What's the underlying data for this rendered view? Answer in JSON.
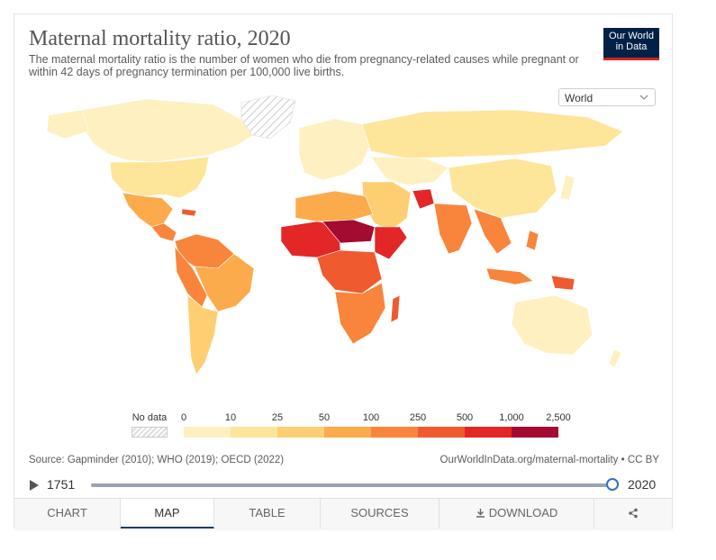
{
  "header": {
    "title": "Maternal mortality ratio, 2020",
    "subtitle": "The maternal mortality ratio is the number of women who die from pregnancy-related causes while pregnant or within 42 days of pregnancy termination per 100,000 live births.",
    "logo_line1": "Our World",
    "logo_line2": "in Data"
  },
  "region_select": {
    "value": "World"
  },
  "legend": {
    "nodata_label": "No data",
    "bins": [
      "0",
      "10",
      "25",
      "50",
      "100",
      "250",
      "500",
      "1,000",
      "2,500"
    ],
    "colors": [
      "#fef0c0",
      "#fde59a",
      "#fdcf72",
      "#fbab4b",
      "#f8853b",
      "#ef5a2e",
      "#e32626",
      "#a50a30"
    ]
  },
  "footer": {
    "source": "Source: Gapminder (2010); WHO (2019); OECD (2022)",
    "url": "OurWorldInData.org/maternal-mortality • CC BY"
  },
  "timeline": {
    "start": "1751",
    "end": "2020",
    "progress": 1.0
  },
  "tabs": [
    {
      "label": "CHART"
    },
    {
      "label": "MAP"
    },
    {
      "label": "TABLE"
    },
    {
      "label": "SOURCES"
    },
    {
      "label": "DOWNLOAD"
    }
  ]
}
